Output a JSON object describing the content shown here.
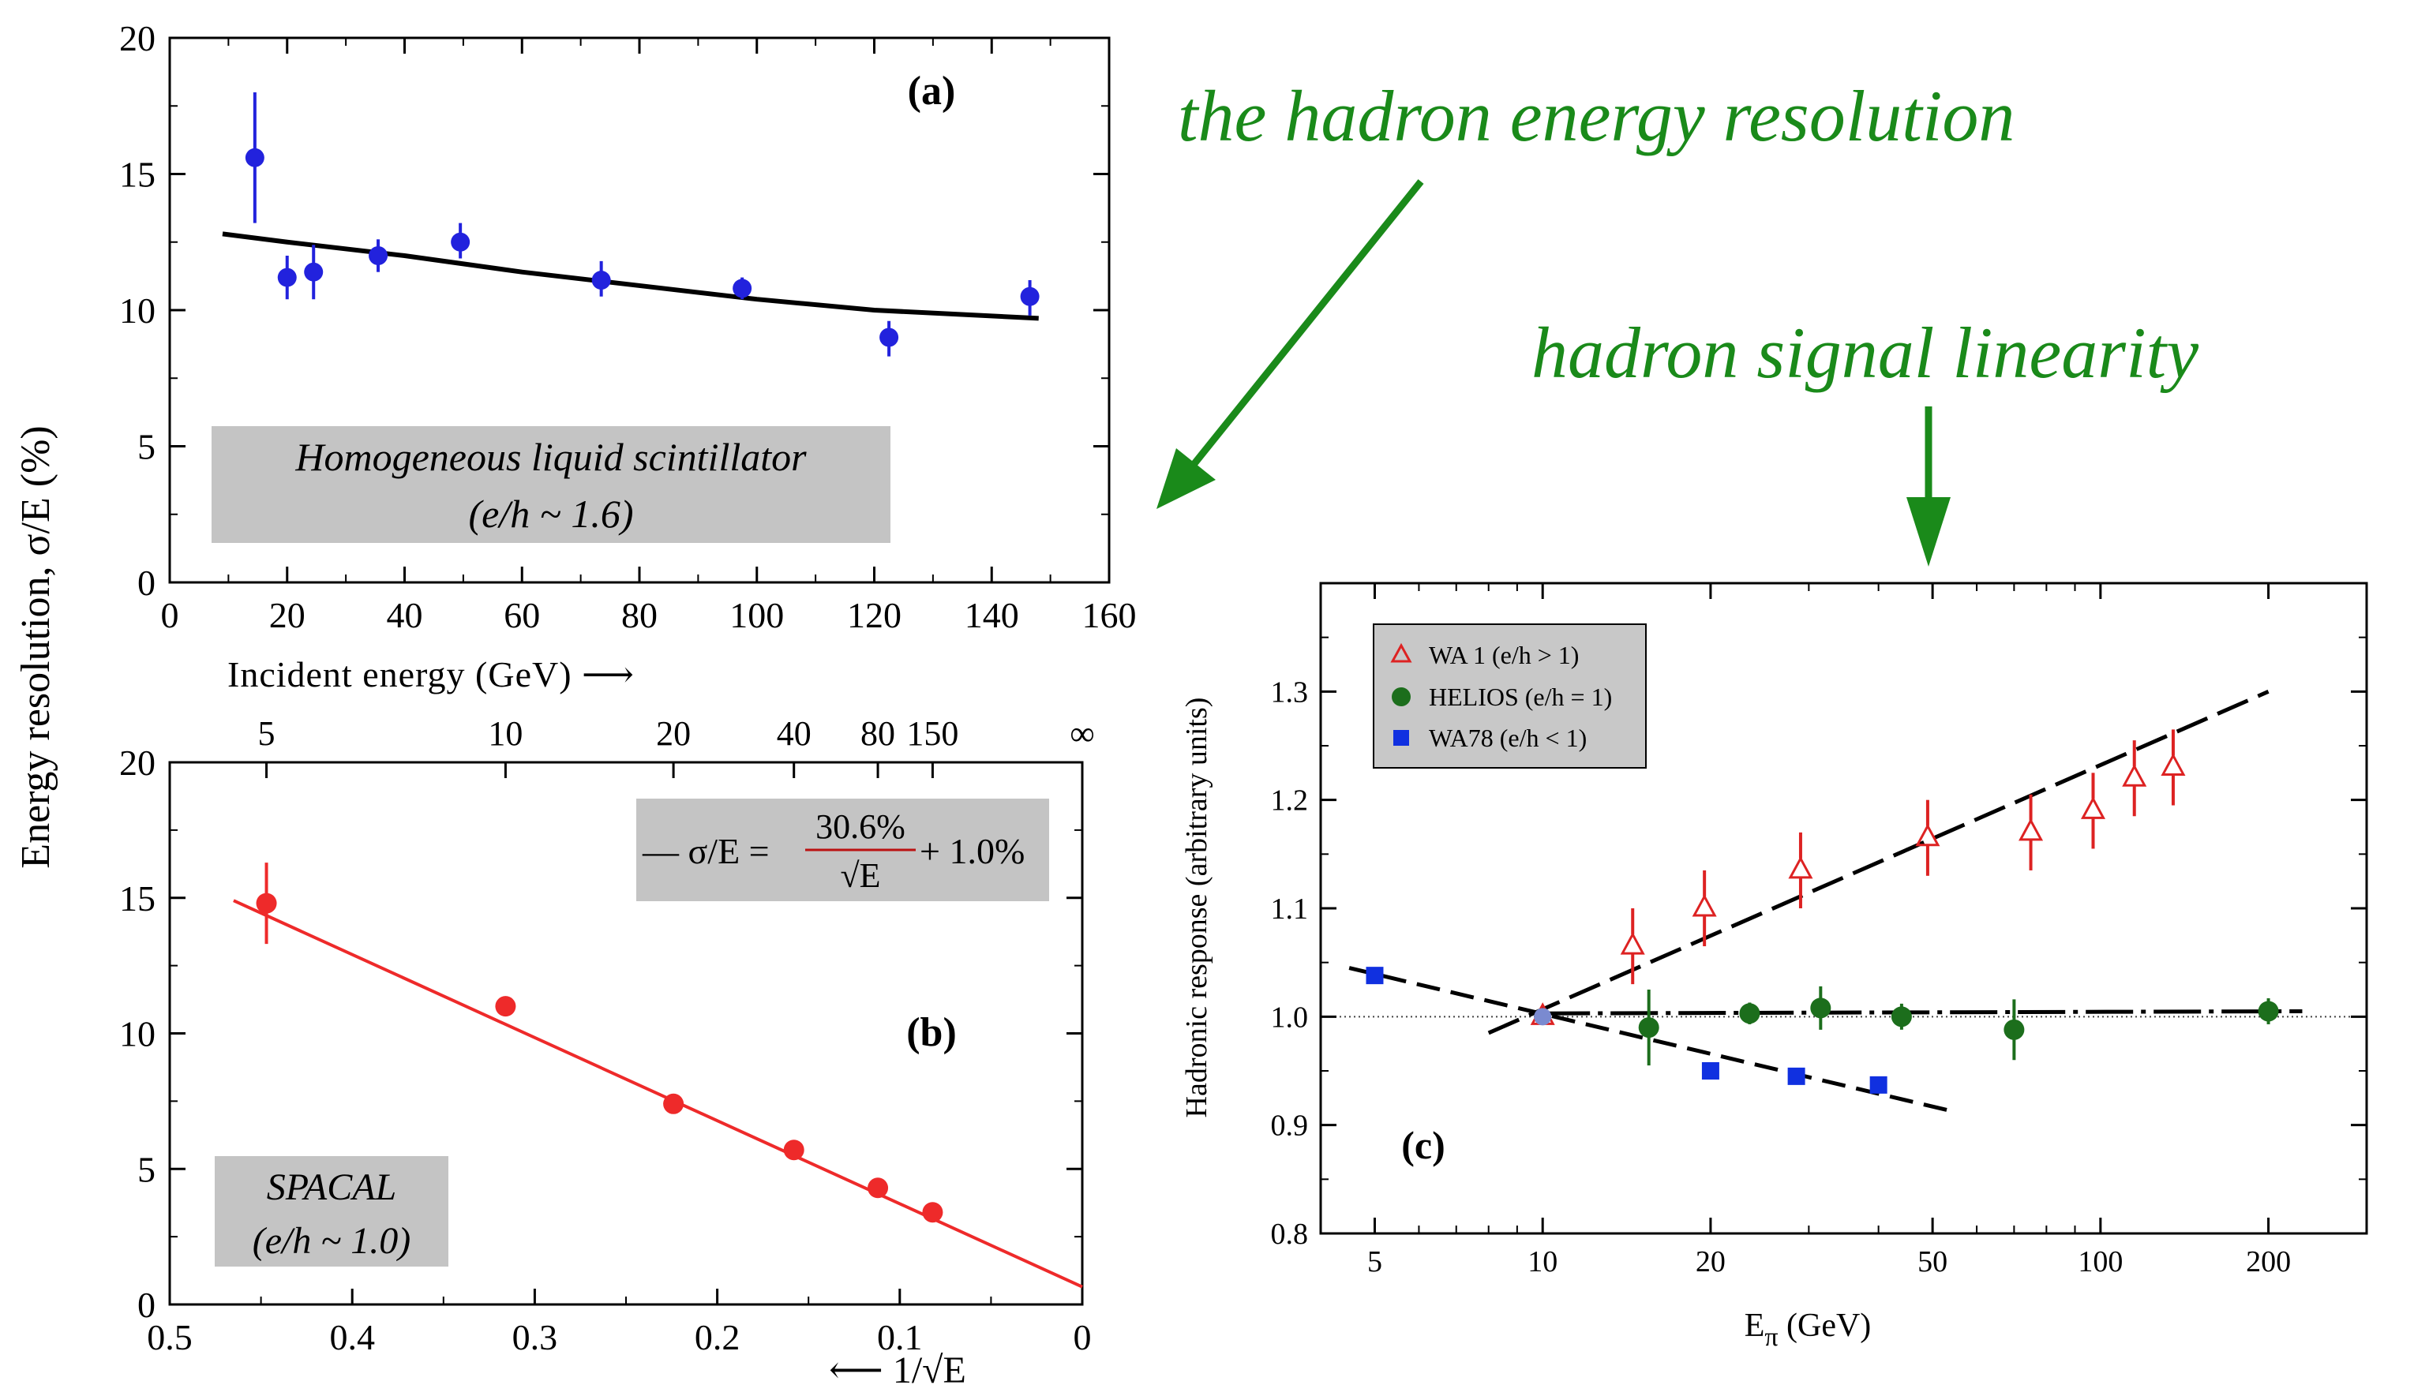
{
  "annotations": {
    "hadron_energy_resolution": "the hadron energy resolution",
    "hadron_signal_linearity": "hadron signal linearity"
  },
  "colors": {
    "green": "#1a8a1a",
    "blue_points": "#2222dd",
    "red_points": "#ee2a2a",
    "dark_red_text": "#bb1111",
    "gray_box": "#c4c4c4",
    "helios_green": "#1c6e1c",
    "wa78_blue": "#1030e0"
  },
  "shared": {
    "ylabel": "Energy resolution, σ/E (%)"
  },
  "chart_data": [
    {
      "panel": "a",
      "type": "scatter",
      "panel_label": "(a)",
      "xlabel": "Incident energy (GeV) ⟶",
      "xlim": [
        0,
        160
      ],
      "ylim": [
        0,
        20
      ],
      "xticks": [
        0,
        20,
        40,
        60,
        80,
        100,
        120,
        140,
        160
      ],
      "yticks": [
        0,
        5,
        10,
        15,
        20
      ],
      "xtick_labels": [
        "0",
        "20",
        "40",
        "60",
        "80",
        "100",
        "120",
        "140",
        "160"
      ],
      "ytick_labels": [
        "0",
        "5",
        "10",
        "15",
        "20"
      ],
      "box_text_line1": "Homogeneous liquid scintillator",
      "box_text_line2": "(e/h ~ 1.6)",
      "points": [
        {
          "x": 14.5,
          "y": 15.6,
          "ylo": 13.2,
          "yhi": 18.0
        },
        {
          "x": 20,
          "y": 11.2,
          "ylo": 10.4,
          "yhi": 12.0
        },
        {
          "x": 24.5,
          "y": 11.4,
          "ylo": 10.4,
          "yhi": 12.4
        },
        {
          "x": 35.5,
          "y": 12.0,
          "ylo": 11.4,
          "yhi": 12.6
        },
        {
          "x": 49.5,
          "y": 12.5,
          "ylo": 11.9,
          "yhi": 13.2
        },
        {
          "x": 73.5,
          "y": 11.1,
          "ylo": 10.5,
          "yhi": 11.8
        },
        {
          "x": 97.5,
          "y": 10.8,
          "ylo": 10.4,
          "yhi": 11.2
        },
        {
          "x": 122.5,
          "y": 9.0,
          "ylo": 8.3,
          "yhi": 9.6
        },
        {
          "x": 146.5,
          "y": 10.5,
          "ylo": 9.8,
          "yhi": 11.1
        }
      ],
      "fit": {
        "x": [
          9,
          20,
          40,
          60,
          80,
          100,
          120,
          148
        ],
        "y": [
          12.8,
          12.5,
          12.0,
          11.4,
          10.9,
          10.4,
          10.0,
          9.7
        ]
      }
    },
    {
      "panel": "b",
      "type": "scatter",
      "panel_label": "(b)",
      "xlabel": "⟵ 1/√E",
      "xlim": [
        0.5,
        0
      ],
      "ylim": [
        0,
        20
      ],
      "xticks": [
        0.5,
        0.4,
        0.3,
        0.2,
        0.1,
        0
      ],
      "xtick_labels": [
        "0.5",
        "0.4",
        "0.3",
        "0.2",
        "0.1",
        "0"
      ],
      "yticks": [
        0,
        5,
        10,
        15,
        20
      ],
      "ytick_labels": [
        "0",
        "5",
        "10",
        "15",
        "20"
      ],
      "top_axis_labels": [
        "5",
        "10",
        "20",
        "40",
        "80",
        "150",
        "∞"
      ],
      "top_axis_positions": [
        0.447,
        0.316,
        0.224,
        0.158,
        0.112,
        0.082,
        0.0
      ],
      "formula_prefix": "— σ/E =",
      "formula_numerator": "30.6%",
      "formula_denominator": "√E",
      "formula_suffix": "+ 1.0%",
      "box_text_line1": "SPACAL",
      "box_text_line2": "(e/h ~ 1.0)",
      "points": [
        {
          "x": 0.447,
          "y": 14.8,
          "ylo": 13.3,
          "yhi": 16.3
        },
        {
          "x": 0.316,
          "y": 11.0
        },
        {
          "x": 0.224,
          "y": 7.4
        },
        {
          "x": 0.158,
          "y": 5.7
        },
        {
          "x": 0.112,
          "y": 4.3
        },
        {
          "x": 0.082,
          "y": 3.4
        }
      ],
      "fit": {
        "x": [
          0.465,
          0.0
        ],
        "y": [
          14.9,
          0.65
        ]
      }
    },
    {
      "panel": "c",
      "type": "scatter",
      "panel_label": "(c)",
      "xlabel": "Eπ (GeV)",
      "xlabel_main": "E",
      "xlabel_sub": "π",
      "xlabel_rest": " (GeV)",
      "ylabel": "Hadronic response (arbitrary units)",
      "xscale": "log",
      "xlim": [
        4,
        300
      ],
      "ylim": [
        0.8,
        1.4
      ],
      "xticks": [
        5,
        10,
        20,
        50,
        100,
        200
      ],
      "xtick_labels": [
        "5",
        "10",
        "20",
        "50",
        "100",
        "200"
      ],
      "yticks": [
        0.8,
        0.9,
        1.0,
        1.1,
        1.2,
        1.3
      ],
      "ytick_labels": [
        "0.8",
        "0.9",
        "1.0",
        "1.1",
        "1.2",
        "1.3"
      ],
      "legend": [
        {
          "label": "WA 1 (e/h > 1)",
          "marker": "triangle-open",
          "color": "#dd2222"
        },
        {
          "label": "HELIOS (e/h = 1)",
          "marker": "circle",
          "color": "#1c6e1c"
        },
        {
          "label": "WA78 (e/h < 1)",
          "marker": "square",
          "color": "#1030e0"
        }
      ],
      "series": [
        {
          "name": "WA 1 (e/h > 1)",
          "x": [
            10,
            14.5,
            19.5,
            29,
            49,
            75,
            97,
            115,
            135
          ],
          "y": [
            1.0,
            1.065,
            1.1,
            1.135,
            1.165,
            1.17,
            1.19,
            1.22,
            1.23
          ],
          "err": [
            0,
            0.035,
            0.035,
            0.035,
            0.035,
            0.035,
            0.035,
            0.035,
            0.035
          ]
        },
        {
          "name": "HELIOS (e/h = 1)",
          "x": [
            10,
            15.5,
            23.5,
            31.5,
            44,
            70,
            200
          ],
          "y": [
            1.0,
            0.99,
            1.003,
            1.008,
            1.0,
            0.988,
            1.005
          ],
          "err": [
            0,
            0.035,
            0.01,
            0.02,
            0.012,
            0.028,
            0.012
          ]
        },
        {
          "name": "WA78 (e/h < 1)",
          "x": [
            5,
            10,
            20,
            28.5,
            40
          ],
          "y": [
            1.038,
            1.0,
            0.95,
            0.945,
            0.937
          ]
        }
      ],
      "fits": [
        {
          "x": [
            8,
            200
          ],
          "y": [
            0.985,
            1.3
          ]
        },
        {
          "x": [
            10,
            230
          ],
          "y": [
            1.003,
            1.005
          ]
        },
        {
          "x": [
            4.5,
            55
          ],
          "y": [
            1.045,
            0.912
          ]
        }
      ],
      "reference_line_y": 1.0
    }
  ]
}
